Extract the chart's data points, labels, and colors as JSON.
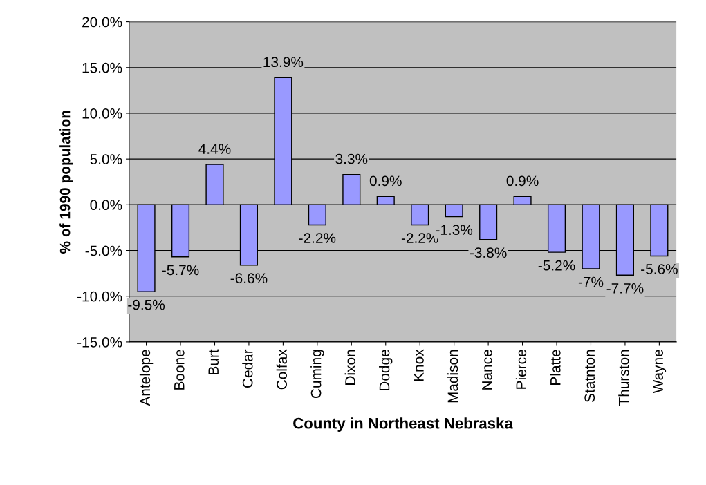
{
  "chart_data": {
    "type": "bar",
    "xlabel": "County in Northeast Nebraska",
    "ylabel": "% of 1990 population",
    "categories": [
      "Antelope",
      "Boone",
      "Burt",
      "Cedar",
      "Colfax",
      "Cuming",
      "Dixon",
      "Dodge",
      "Knox",
      "Madison",
      "Nance",
      "Pierce",
      "Platte",
      "Statnton",
      "Thurston",
      "Wayne"
    ],
    "values": [
      -9.5,
      -5.7,
      4.4,
      -6.6,
      13.9,
      -2.2,
      3.3,
      0.9,
      -2.2,
      -1.3,
      -3.8,
      0.9,
      -5.2,
      -7,
      -7.7,
      -5.6
    ],
    "value_labels": [
      "-9.5%",
      "-5.7%",
      "4.4%",
      "-6.6%",
      "13.9%",
      "-2.2%",
      "3.3%",
      "0.9%",
      "-2.2%",
      "-1.3%",
      "-3.8%",
      "0.9%",
      "-5.2%",
      "-7%",
      "-7.7%",
      "-5.6%"
    ],
    "color": "#9999ff",
    "ylim": [
      -15,
      20
    ],
    "yticks": [
      {
        "value": -15,
        "label": "-15.0%"
      },
      {
        "value": -10,
        "label": "-10.0%"
      },
      {
        "value": -5,
        "label": "-5.0%"
      },
      {
        "value": 0,
        "label": "0.0%"
      },
      {
        "value": 5,
        "label": "5.0%"
      },
      {
        "value": 10,
        "label": "10.0%"
      },
      {
        "value": 15,
        "label": "15.0%"
      },
      {
        "value": 20,
        "label": "20.0%"
      }
    ],
    "grid": "y",
    "legend": false
  }
}
